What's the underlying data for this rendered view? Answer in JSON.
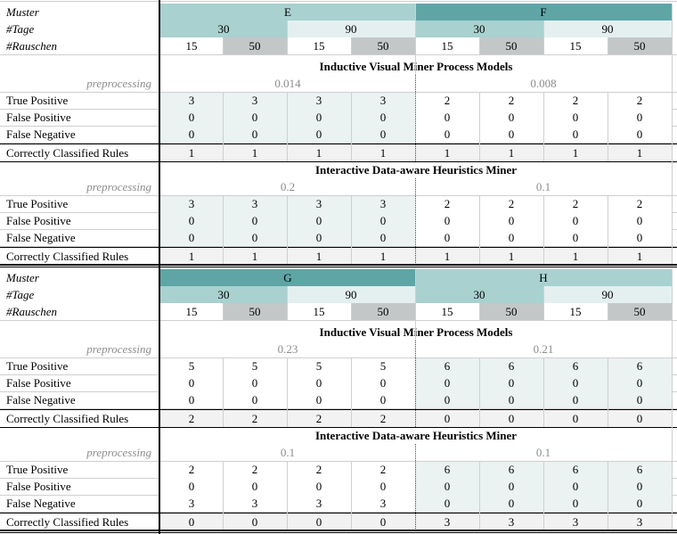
{
  "colors": {
    "teal_dark": "#5fa5a5",
    "teal_light": "#a8d1cf",
    "pale": "#e4f0f0",
    "row_alt": "#eaf2f2",
    "noise_gray": "#c4c7c8",
    "light_gray": "#f2f2f2",
    "muted_text": "#8c8c8c"
  },
  "labels": {
    "muster": "Muster",
    "tage": "#Tage",
    "rauschen": "#Rauschen",
    "preprocessing": "preprocessing",
    "true_positive": "True Positive",
    "false_positive": "False Positive",
    "false_negative": "False Negative",
    "correct_rules": "Correctly Classified Rules"
  },
  "blocks": [
    {
      "patterns": [
        "E",
        "F"
      ],
      "tage": [
        "30",
        "90",
        "30",
        "90"
      ],
      "rauschen": [
        "15",
        "50",
        "15",
        "50",
        "15",
        "50",
        "15",
        "50"
      ],
      "sections": [
        {
          "title": "Inductive Visual Miner Process Models",
          "preprocessing": [
            "0.014",
            "0.008"
          ],
          "true_positive": [
            "3",
            "3",
            "3",
            "3",
            "2",
            "2",
            "2",
            "2"
          ],
          "false_positive": [
            "0",
            "0",
            "0",
            "0",
            "0",
            "0",
            "0",
            "0"
          ],
          "false_negative": [
            "0",
            "0",
            "0",
            "0",
            "0",
            "0",
            "0",
            "0"
          ],
          "correct_rules": [
            "1",
            "1",
            "1",
            "1",
            "1",
            "1",
            "1",
            "1"
          ]
        },
        {
          "title": "Interactive Data-aware Heuristics Miner",
          "preprocessing": [
            "0.2",
            "0.1"
          ],
          "true_positive": [
            "3",
            "3",
            "3",
            "3",
            "2",
            "2",
            "2",
            "2"
          ],
          "false_positive": [
            "0",
            "0",
            "0",
            "0",
            "0",
            "0",
            "0",
            "0"
          ],
          "false_negative": [
            "0",
            "0",
            "0",
            "0",
            "0",
            "0",
            "0",
            "0"
          ],
          "correct_rules": [
            "1",
            "1",
            "1",
            "1",
            "1",
            "1",
            "1",
            "1"
          ]
        }
      ]
    },
    {
      "patterns": [
        "G",
        "H"
      ],
      "tage": [
        "30",
        "90",
        "30",
        "90"
      ],
      "rauschen": [
        "15",
        "50",
        "15",
        "50",
        "15",
        "50",
        "15",
        "50"
      ],
      "sections": [
        {
          "title": "Inductive Visual Miner Process Models",
          "preprocessing": [
            "0.23",
            "0.21"
          ],
          "true_positive": [
            "5",
            "5",
            "5",
            "5",
            "6",
            "6",
            "6",
            "6"
          ],
          "false_positive": [
            "0",
            "0",
            "0",
            "0",
            "0",
            "0",
            "0",
            "0"
          ],
          "false_negative": [
            "0",
            "0",
            "0",
            "0",
            "0",
            "0",
            "0",
            "0"
          ],
          "correct_rules": [
            "2",
            "2",
            "2",
            "2",
            "0",
            "0",
            "0",
            "0"
          ]
        },
        {
          "title": "Interactive Data-aware Heuristics Miner",
          "preprocessing": [
            "0.1",
            "0.1"
          ],
          "true_positive": [
            "2",
            "2",
            "2",
            "2",
            "6",
            "6",
            "6",
            "6"
          ],
          "false_positive": [
            "0",
            "0",
            "0",
            "0",
            "0",
            "0",
            "0",
            "0"
          ],
          "false_negative": [
            "3",
            "3",
            "3",
            "3",
            "0",
            "0",
            "0",
            "0"
          ],
          "correct_rules": [
            "0",
            "0",
            "0",
            "0",
            "3",
            "3",
            "3",
            "3"
          ]
        }
      ]
    }
  ]
}
